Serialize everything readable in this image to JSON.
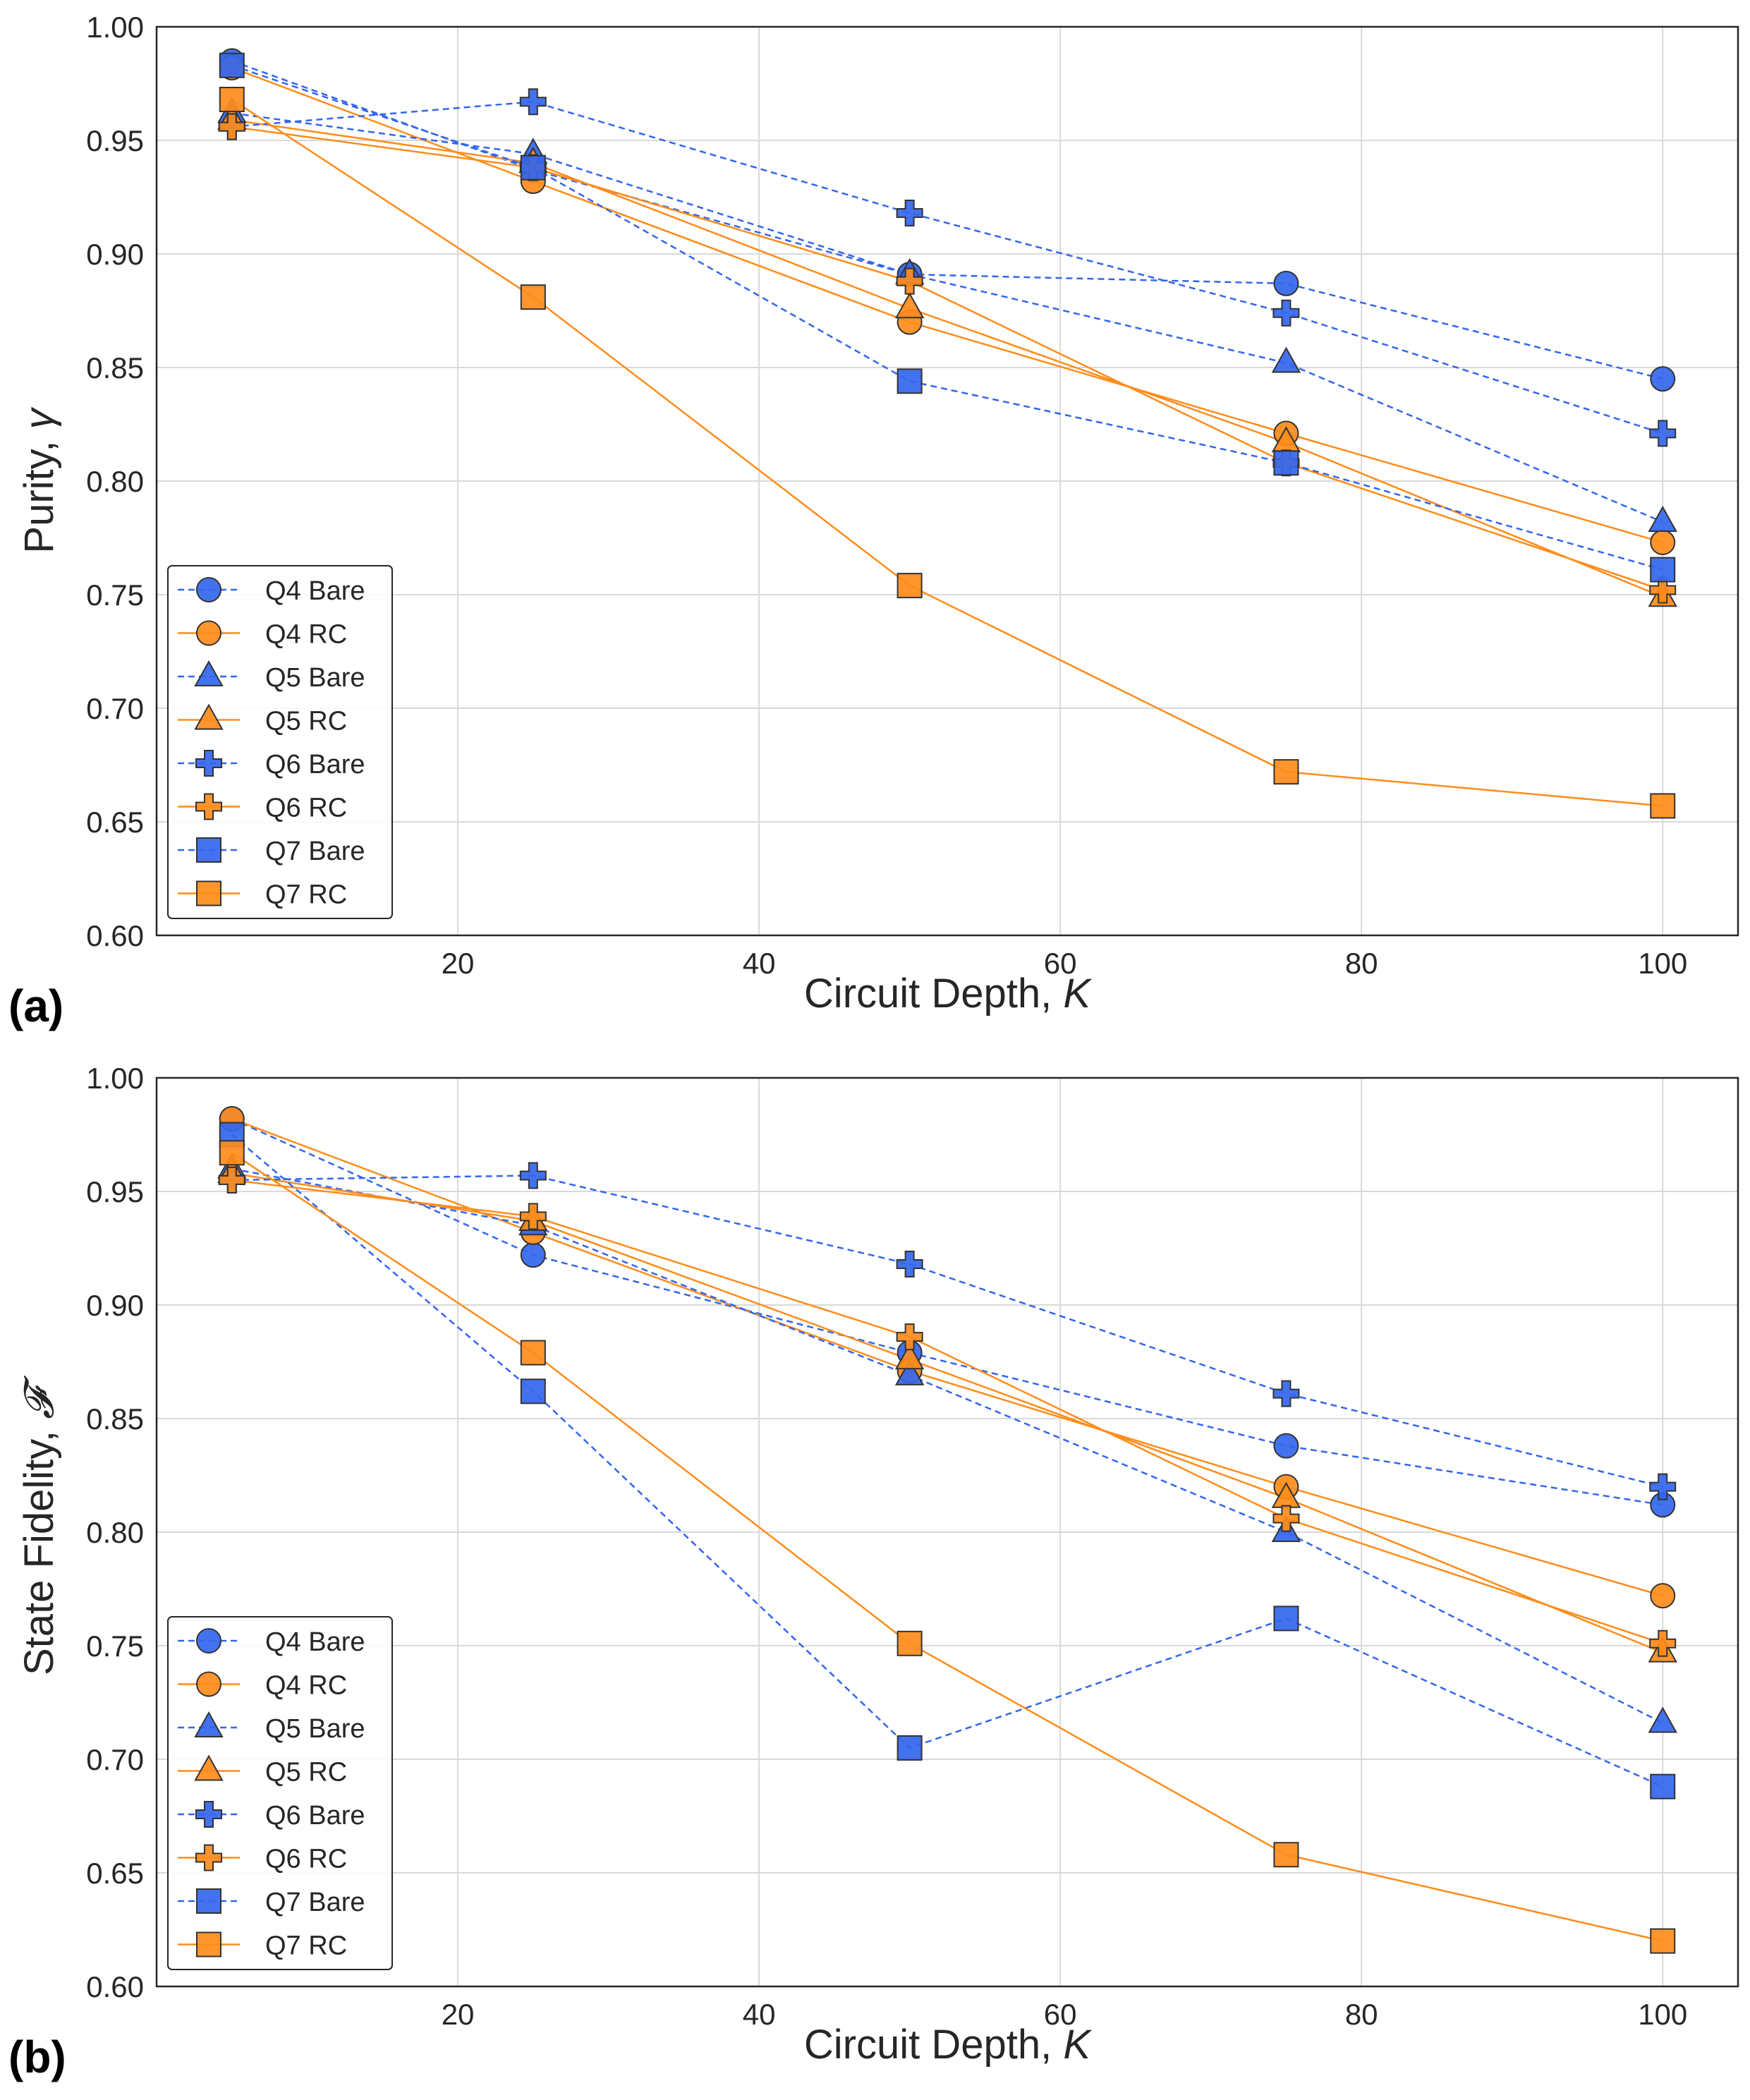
{
  "colors": {
    "bare": "#3366ee",
    "rc": "#ff8c1a",
    "edge": "#333333",
    "grid": "#d9d9d9"
  },
  "chart_data": [
    {
      "type": "line",
      "panel": "(a)",
      "xlabel_text": "Circuit Depth, ",
      "xlabel_var": "K",
      "ylabel_text": "Purity, ",
      "ylabel_var": "γ",
      "xlim": [
        0,
        105
      ],
      "ylim": [
        0.6,
        1.0
      ],
      "xticks": [
        "20",
        "40",
        "60",
        "80",
        "100"
      ],
      "xtick_values": [
        20,
        40,
        60,
        80,
        100
      ],
      "yticks": [
        "0.60",
        "0.65",
        "0.70",
        "0.75",
        "0.80",
        "0.85",
        "0.90",
        "0.95",
        "1.00"
      ],
      "ytick_values": [
        0.6,
        0.65,
        0.7,
        0.75,
        0.8,
        0.85,
        0.9,
        0.95,
        1.0
      ],
      "legend_position": "lower-left",
      "x": [
        5,
        25,
        50,
        75,
        100
      ],
      "series": [
        {
          "name": "Q4 Bare",
          "style": "bare",
          "marker": "circle",
          "values": [
            0.985,
            0.937,
            0.891,
            0.887,
            0.845
          ]
        },
        {
          "name": "Q4 RC",
          "style": "rc",
          "marker": "circle",
          "values": [
            0.982,
            0.932,
            0.87,
            0.821,
            0.773
          ]
        },
        {
          "name": "Q5 Bare",
          "style": "bare",
          "marker": "triangle",
          "values": [
            0.962,
            0.944,
            0.891,
            0.852,
            0.782
          ]
        },
        {
          "name": "Q5 RC",
          "style": "rc",
          "marker": "triangle",
          "values": [
            0.959,
            0.94,
            0.876,
            0.817,
            0.749
          ]
        },
        {
          "name": "Q6 Bare",
          "style": "bare",
          "marker": "plus",
          "values": [
            0.956,
            0.967,
            0.918,
            0.874,
            0.821
          ]
        },
        {
          "name": "Q6 RC",
          "style": "rc",
          "marker": "plus",
          "values": [
            0.956,
            0.938,
            0.888,
            0.808,
            0.752
          ]
        },
        {
          "name": "Q7 Bare",
          "style": "bare",
          "marker": "square",
          "values": [
            0.983,
            0.938,
            0.844,
            0.808,
            0.761
          ]
        },
        {
          "name": "Q7 RC",
          "style": "rc",
          "marker": "square",
          "values": [
            0.968,
            0.881,
            0.754,
            0.672,
            0.657
          ]
        }
      ]
    },
    {
      "type": "line",
      "panel": "(b)",
      "xlabel_text": "Circuit Depth, ",
      "xlabel_var": "K",
      "ylabel_text": "State Fidelity, ",
      "ylabel_var": "𝓕",
      "xlim": [
        0,
        105
      ],
      "ylim": [
        0.6,
        1.0
      ],
      "xticks": [
        "20",
        "40",
        "60",
        "80",
        "100"
      ],
      "xtick_values": [
        20,
        40,
        60,
        80,
        100
      ],
      "yticks": [
        "0.60",
        "0.65",
        "0.70",
        "0.75",
        "0.80",
        "0.85",
        "0.90",
        "0.95",
        "1.00"
      ],
      "ytick_values": [
        0.6,
        0.65,
        0.7,
        0.75,
        0.8,
        0.85,
        0.9,
        0.95,
        1.0
      ],
      "legend_position": "lower-left",
      "x": [
        5,
        25,
        50,
        75,
        100
      ],
      "series": [
        {
          "name": "Q4 Bare",
          "style": "bare",
          "marker": "circle",
          "values": [
            0.982,
            0.922,
            0.879,
            0.838,
            0.812
          ]
        },
        {
          "name": "Q4 RC",
          "style": "rc",
          "marker": "circle",
          "values": [
            0.982,
            0.932,
            0.871,
            0.82,
            0.772
          ]
        },
        {
          "name": "Q5 Bare",
          "style": "bare",
          "marker": "triangle",
          "values": [
            0.96,
            0.935,
            0.869,
            0.8,
            0.716
          ]
        },
        {
          "name": "Q5 RC",
          "style": "rc",
          "marker": "triangle",
          "values": [
            0.958,
            0.937,
            0.876,
            0.815,
            0.747
          ]
        },
        {
          "name": "Q6 Bare",
          "style": "bare",
          "marker": "plus",
          "values": [
            0.955,
            0.957,
            0.918,
            0.861,
            0.82
          ]
        },
        {
          "name": "Q6 RC",
          "style": "rc",
          "marker": "plus",
          "values": [
            0.955,
            0.939,
            0.886,
            0.806,
            0.751
          ]
        },
        {
          "name": "Q7 Bare",
          "style": "bare",
          "marker": "square",
          "values": [
            0.975,
            0.862,
            0.705,
            0.762,
            0.688
          ]
        },
        {
          "name": "Q7 RC",
          "style": "rc",
          "marker": "square",
          "values": [
            0.967,
            0.879,
            0.751,
            0.658,
            0.62
          ]
        }
      ]
    }
  ]
}
